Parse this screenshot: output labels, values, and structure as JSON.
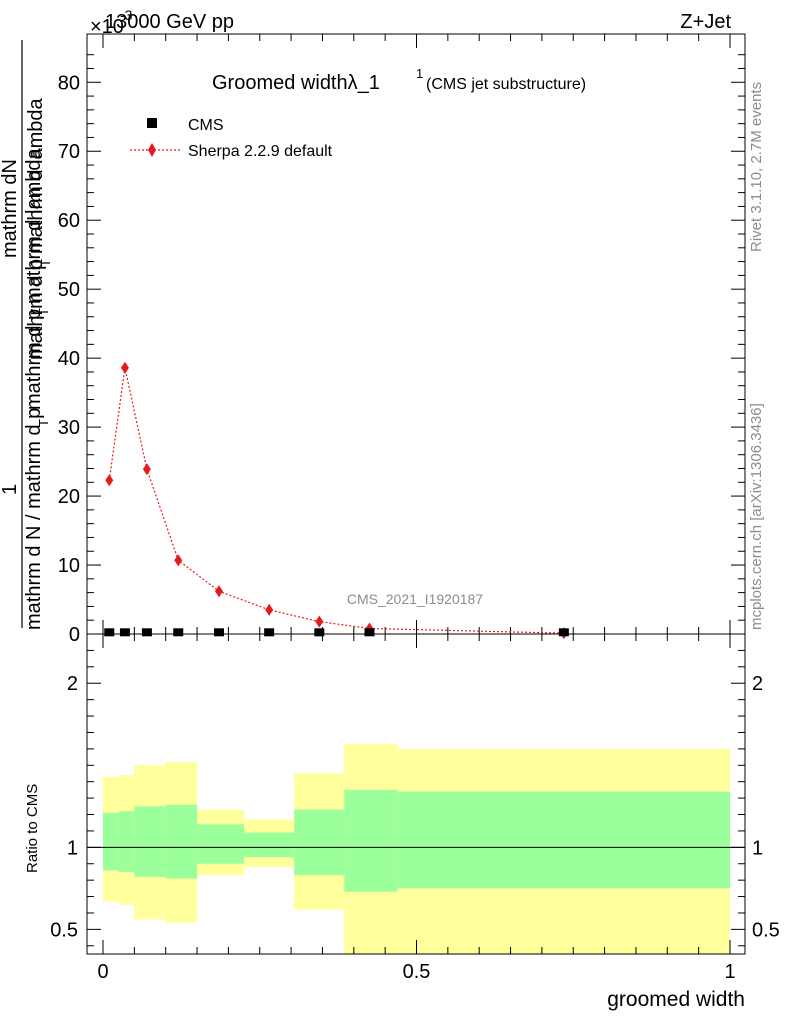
{
  "header": {
    "exponent_label": "×10",
    "exponent_sup": "-3",
    "energy": "13000 GeV pp",
    "process": "Z+Jet"
  },
  "side_labels": {
    "rivet": "Rivet 3.1.10,  2.7M events",
    "mcplots": "mcplots.cern.ch [arXiv:1306.3436]"
  },
  "chart_data": {
    "type": "scatter",
    "title": "Groomed widthλ_1",
    "title_sup": "1",
    "title_suffix": "(CMS jet substructure)",
    "watermark": "CMS_2021_I1920187",
    "ylabel_top_numerator": "mathrm dN",
    "ylabel_top_mid": "mathrm d p",
    "ylabel_top_mid_sub": "T",
    "ylabel_top_mid_tail": "mathrm d lambda",
    "ylabel_one": "1",
    "ylabel_bottom": "mathrm d N / mathrm d p",
    "ylabel_bottom_sub": "T",
    "ylabel_bottom_tail": "mathrm d p",
    "ylabel_bottom_sub2": "T",
    "ylabel_bottom_end": "mathrm d lambda",
    "ylabel_ratio": "Ratio to CMS",
    "xlabel": "groomed width",
    "xlim": [
      0,
      1
    ],
    "ylim_main": [
      0,
      87
    ],
    "ylim_ratio": [
      0.35,
      2.3
    ],
    "x_ticks": [
      "0",
      "0.5",
      "1"
    ],
    "y_ticks_main": [
      "0",
      "10",
      "20",
      "30",
      "40",
      "50",
      "60",
      "70",
      "80"
    ],
    "y_ticks_ratio": [
      "0.5",
      "1",
      "2"
    ],
    "legend": [
      {
        "name": "CMS",
        "marker": "square",
        "color": "#000000"
      },
      {
        "name": "Sherpa 2.2.9 default",
        "marker": "diamond",
        "color": "#e41a1c"
      }
    ],
    "series": [
      {
        "name": "CMS",
        "x": [
          0.01,
          0.035,
          0.07,
          0.12,
          0.185,
          0.265,
          0.345,
          0.425,
          0.735
        ],
        "values": [
          0.1,
          0.1,
          0.1,
          0.1,
          0.1,
          0.1,
          0.1,
          0.1,
          0.1
        ]
      },
      {
        "name": "Sherpa 2.2.9 default",
        "x": [
          0.01,
          0.035,
          0.07,
          0.12,
          0.185,
          0.265,
          0.345,
          0.425,
          0.735
        ],
        "values": [
          22.3,
          38.6,
          23.9,
          10.7,
          6.2,
          3.5,
          1.8,
          0.8,
          0.12
        ]
      }
    ],
    "ratio_bands": [
      {
        "x0": 0.0,
        "x1": 0.025,
        "g_lo": 0.86,
        "g_hi": 1.21,
        "y_lo": 0.67,
        "y_hi": 1.43
      },
      {
        "x0": 0.025,
        "x1": 0.05,
        "g_lo": 0.85,
        "g_hi": 1.22,
        "y_lo": 0.65,
        "y_hi": 1.44
      },
      {
        "x0": 0.05,
        "x1": 0.1,
        "g_lo": 0.82,
        "g_hi": 1.25,
        "y_lo": 0.56,
        "y_hi": 1.5
      },
      {
        "x0": 0.1,
        "x1": 0.15,
        "g_lo": 0.81,
        "g_hi": 1.26,
        "y_lo": 0.54,
        "y_hi": 1.52
      },
      {
        "x0": 0.15,
        "x1": 0.225,
        "g_lo": 0.9,
        "g_hi": 1.14,
        "y_lo": 0.83,
        "y_hi": 1.23
      },
      {
        "x0": 0.225,
        "x1": 0.305,
        "g_lo": 0.94,
        "g_hi": 1.09,
        "y_lo": 0.88,
        "y_hi": 1.17
      },
      {
        "x0": 0.305,
        "x1": 0.385,
        "g_lo": 0.83,
        "g_hi": 1.23,
        "y_lo": 0.62,
        "y_hi": 1.45
      },
      {
        "x0": 0.385,
        "x1": 0.47,
        "g_lo": 0.73,
        "g_hi": 1.35,
        "y_lo": 0.35,
        "y_hi": 1.63
      },
      {
        "x0": 0.47,
        "x1": 1.0,
        "g_lo": 0.75,
        "g_hi": 1.34,
        "y_lo": 0.35,
        "y_hi": 1.6
      }
    ],
    "colors": {
      "data": "#000000",
      "mc": "#e41a1c",
      "band_inner": "#9bff9b",
      "band_outer": "#ffff9b"
    }
  }
}
